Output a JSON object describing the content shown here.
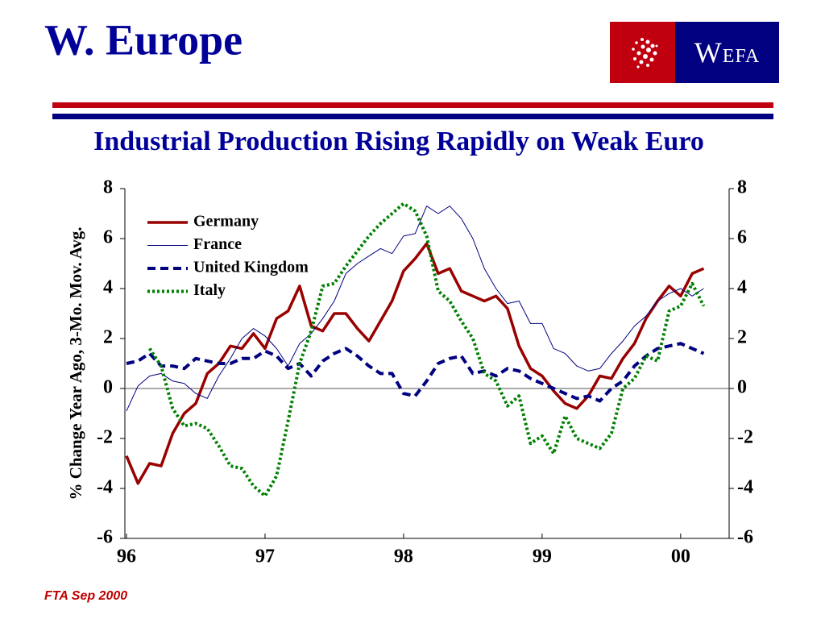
{
  "header": {
    "title": "W. Europe",
    "logo": "WEFA"
  },
  "chart_data": {
    "type": "line",
    "title": "Industrial Production Rising Rapidly on Weak Euro",
    "ylabel": "% Change Year Ago, 3-Mo. Mov. Avg.",
    "categories": [
      "96",
      null,
      null,
      null,
      null,
      null,
      null,
      null,
      null,
      null,
      null,
      null,
      "97",
      null,
      null,
      null,
      null,
      null,
      null,
      null,
      null,
      null,
      null,
      null,
      "98",
      null,
      null,
      null,
      null,
      null,
      null,
      null,
      null,
      null,
      null,
      null,
      "99",
      null,
      null,
      null,
      null,
      null,
      null,
      null,
      null,
      null,
      null,
      null,
      "00",
      null,
      null
    ],
    "ylim": [
      -6,
      8
    ],
    "yticks": [
      -6,
      -4,
      -2,
      0,
      2,
      4,
      6,
      8
    ],
    "y2lim": [
      -6,
      8
    ],
    "y2ticks": [
      -6,
      -4,
      -2,
      0,
      2,
      4,
      6,
      8
    ],
    "legend": "upper left",
    "series": [
      {
        "name": "Germany",
        "color": "#990000",
        "style": "solid",
        "width": 3.5,
        "values": [
          -2.7,
          -3.8,
          -3.0,
          -3.1,
          -1.8,
          -1.0,
          -0.6,
          0.6,
          1.0,
          1.7,
          1.6,
          2.2,
          1.6,
          2.8,
          3.1,
          4.1,
          2.5,
          2.3,
          3.0,
          3.0,
          2.4,
          1.9,
          2.7,
          3.5,
          4.7,
          5.2,
          5.8,
          4.6,
          4.8,
          3.9,
          3.7,
          3.5,
          3.7,
          3.2,
          1.7,
          0.8,
          0.5,
          -0.1,
          -0.6,
          -0.8,
          -0.3,
          0.5,
          0.4,
          1.2,
          1.8,
          2.8,
          3.5,
          4.1,
          3.7,
          4.6,
          4.8
        ]
      },
      {
        "name": "France",
        "color": "#000080",
        "style": "solid",
        "width": 1,
        "values": [
          -0.9,
          0.1,
          0.5,
          0.6,
          0.3,
          0.2,
          -0.2,
          -0.4,
          0.5,
          1.2,
          2.0,
          2.4,
          2.1,
          1.6,
          0.9,
          1.8,
          2.2,
          2.8,
          3.5,
          4.6,
          5.0,
          5.3,
          5.6,
          5.4,
          6.1,
          6.2,
          7.3,
          7.0,
          7.3,
          6.8,
          6.0,
          4.8,
          4.0,
          3.4,
          3.5,
          2.6,
          2.6,
          1.6,
          1.4,
          0.9,
          0.7,
          0.8,
          1.4,
          1.9,
          2.5,
          2.9,
          3.5,
          3.8,
          4.0,
          3.7,
          4.0
        ]
      },
      {
        "name": "United Kingdom",
        "color": "#000080",
        "style": "dashed",
        "width": 4,
        "values": [
          1.0,
          1.1,
          1.4,
          0.9,
          0.9,
          0.8,
          1.2,
          1.1,
          1.0,
          1.0,
          1.2,
          1.2,
          1.5,
          1.3,
          0.8,
          1.0,
          0.5,
          1.1,
          1.4,
          1.6,
          1.3,
          0.9,
          0.6,
          0.6,
          -0.2,
          -0.3,
          0.3,
          1.0,
          1.2,
          1.3,
          0.6,
          0.7,
          0.5,
          0.8,
          0.7,
          0.4,
          0.2,
          0.0,
          -0.2,
          -0.4,
          -0.3,
          -0.5,
          0.0,
          0.3,
          0.9,
          1.3,
          1.6,
          1.7,
          1.8,
          1.6,
          1.4
        ]
      },
      {
        "name": "Italy",
        "color": "#008000",
        "style": "dotted",
        "width": 4,
        "values": [
          null,
          null,
          1.6,
          0.9,
          -0.8,
          -1.5,
          -1.4,
          -1.6,
          -2.3,
          -3.1,
          -3.2,
          -3.9,
          -4.3,
          -3.5,
          -1.3,
          1.0,
          2.3,
          4.1,
          4.2,
          4.9,
          5.5,
          6.1,
          6.6,
          7.0,
          7.4,
          7.1,
          6.1,
          3.9,
          3.5,
          2.7,
          2.0,
          0.6,
          0.3,
          -0.7,
          -0.3,
          -2.2,
          -1.9,
          -2.6,
          -1.1,
          -2.0,
          -2.2,
          -2.4,
          -1.8,
          0.0,
          0.4,
          1.3,
          1.1,
          3.1,
          3.3,
          4.2,
          3.3
        ]
      }
    ]
  },
  "footer": "FTA Sep 2000"
}
